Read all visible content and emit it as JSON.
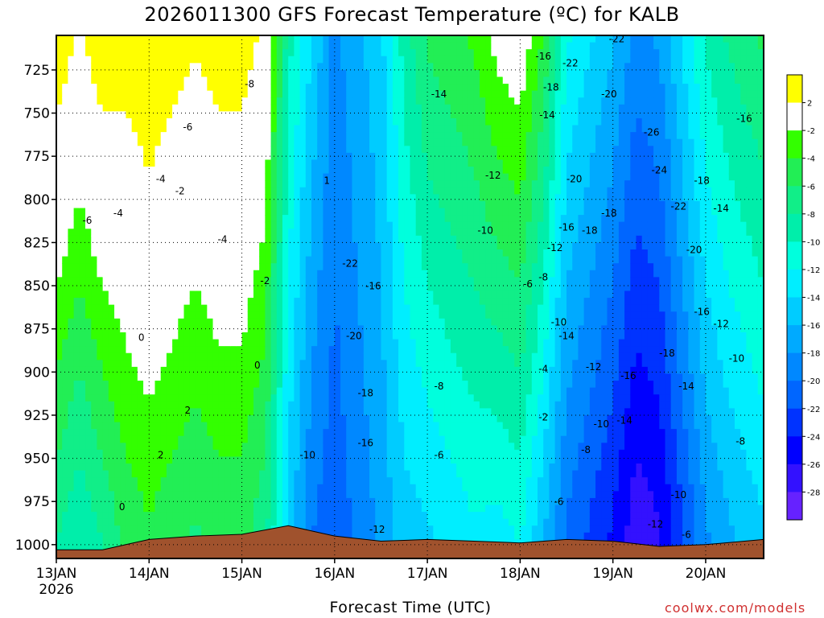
{
  "chart_data": {
    "type": "heatmap",
    "title": "2026011300 GFS Forecast Temperature (ºC) for KALB",
    "xlabel": "Forecast Time (UTC)",
    "ylabel": "",
    "credit": "coolwx.com/models",
    "x_ticks": [
      {
        "label": "13JAN",
        "sublabel": "2026",
        "hour": 0
      },
      {
        "label": "14JAN",
        "hour": 24
      },
      {
        "label": "15JAN",
        "hour": 48
      },
      {
        "label": "16JAN",
        "hour": 72
      },
      {
        "label": "17JAN",
        "hour": 96
      },
      {
        "label": "18JAN",
        "hour": 120
      },
      {
        "label": "19JAN",
        "hour": 144
      },
      {
        "label": "20JAN",
        "hour": 168
      }
    ],
    "xlim_hours": [
      0,
      183
    ],
    "y_ticks": [
      725,
      750,
      775,
      800,
      825,
      850,
      875,
      900,
      925,
      950,
      975,
      1000
    ],
    "ylim_hpa": [
      705,
      1008
    ],
    "colorbar": {
      "labels": [
        "2",
        "-2",
        "-4",
        "-6",
        "-8",
        "-10",
        "-12",
        "-14",
        "-16",
        "-18",
        "-20",
        "-22",
        "-24",
        "-26",
        "-28"
      ],
      "colors": [
        "#ffff00",
        "#ffffff",
        "#33ff00",
        "#22ee55",
        "#11ee88",
        "#00eeaa",
        "#00ffdd",
        "#00eeff",
        "#00ccff",
        "#00aaff",
        "#0088ff",
        "#0066ff",
        "#0033ff",
        "#0000ff",
        "#3311ff",
        "#6622ff"
      ]
    },
    "columns": [
      {
        "hour": 0,
        "mean": -2,
        "grad": -4
      },
      {
        "hour": 6,
        "mean": -4,
        "grad": -4
      },
      {
        "hour": 12,
        "mean": -2,
        "grad": -4
      },
      {
        "hour": 18,
        "mean": -1,
        "grad": -3
      },
      {
        "hour": 24,
        "mean": 0,
        "grad": -3
      },
      {
        "hour": 30,
        "mean": -1,
        "grad": -3
      },
      {
        "hour": 36,
        "mean": -2,
        "grad": -3
      },
      {
        "hour": 42,
        "mean": -1,
        "grad": -3
      },
      {
        "hour": 48,
        "mean": -1,
        "grad": -3
      },
      {
        "hour": 54,
        "mean": -3,
        "grad": -3
      },
      {
        "hour": 60,
        "mean": -12,
        "grad": -2
      },
      {
        "hour": 66,
        "mean": -17,
        "grad": -2
      },
      {
        "hour": 72,
        "mean": -20,
        "grad": -1
      },
      {
        "hour": 78,
        "mean": -18,
        "grad": -1
      },
      {
        "hour": 84,
        "mean": -16,
        "grad": -1
      },
      {
        "hour": 90,
        "mean": -12,
        "grad": -2
      },
      {
        "hour": 96,
        "mean": -10,
        "grad": -3
      },
      {
        "hour": 102,
        "mean": -9,
        "grad": -3
      },
      {
        "hour": 108,
        "mean": -8,
        "grad": -3
      },
      {
        "hour": 114,
        "mean": -7,
        "grad": -4
      },
      {
        "hour": 120,
        "mean": -6,
        "grad": -4
      },
      {
        "hour": 126,
        "mean": -10,
        "grad": -4
      },
      {
        "hour": 132,
        "mean": -16,
        "grad": -3
      },
      {
        "hour": 138,
        "mean": -18,
        "grad": -3
      },
      {
        "hour": 144,
        "mean": -20,
        "grad": -3
      },
      {
        "hour": 150,
        "mean": -23,
        "grad": -3
      },
      {
        "hour": 156,
        "mean": -22,
        "grad": -3
      },
      {
        "hour": 162,
        "mean": -18,
        "grad": -3
      },
      {
        "hour": 168,
        "mean": -14,
        "grad": -3
      },
      {
        "hour": 174,
        "mean": -12,
        "grad": -3
      },
      {
        "hour": 183,
        "mean": -10,
        "grad": -3
      }
    ],
    "terrain_hpa": [
      {
        "hour": 0,
        "p": 1003
      },
      {
        "hour": 12,
        "p": 1003
      },
      {
        "hour": 18,
        "p": 1000
      },
      {
        "hour": 24,
        "p": 997
      },
      {
        "hour": 36,
        "p": 995
      },
      {
        "hour": 48,
        "p": 994
      },
      {
        "hour": 60,
        "p": 989
      },
      {
        "hour": 66,
        "p": 992
      },
      {
        "hour": 72,
        "p": 995
      },
      {
        "hour": 84,
        "p": 998
      },
      {
        "hour": 96,
        "p": 997
      },
      {
        "hour": 108,
        "p": 998
      },
      {
        "hour": 120,
        "p": 999
      },
      {
        "hour": 132,
        "p": 997
      },
      {
        "hour": 144,
        "p": 998
      },
      {
        "hour": 156,
        "p": 1001
      },
      {
        "hour": 168,
        "p": 1000
      },
      {
        "hour": 183,
        "p": 997
      }
    ],
    "contour_labels": [
      {
        "text": "-8",
        "hour": 50,
        "p": 735
      },
      {
        "text": "-6",
        "hour": 34,
        "p": 760
      },
      {
        "text": "-4",
        "hour": 27,
        "p": 790
      },
      {
        "text": "-2",
        "hour": 32,
        "p": 797
      },
      {
        "text": "-4",
        "hour": 43,
        "p": 825
      },
      {
        "text": "-6",
        "hour": 8,
        "p": 814
      },
      {
        "text": "-4",
        "hour": 16,
        "p": 810
      },
      {
        "text": "-2",
        "hour": 54,
        "p": 849
      },
      {
        "text": "0",
        "hour": 22,
        "p": 882
      },
      {
        "text": "0",
        "hour": 52,
        "p": 898
      },
      {
        "text": "2",
        "hour": 34,
        "p": 924
      },
      {
        "text": "2",
        "hour": 27,
        "p": 950
      },
      {
        "text": "0",
        "hour": 17,
        "p": 980
      },
      {
        "text": "-10",
        "hour": 65,
        "p": 950
      },
      {
        "text": "-22",
        "hour": 76,
        "p": 839
      },
      {
        "text": "-20",
        "hour": 77,
        "p": 881
      },
      {
        "text": "-16",
        "hour": 82,
        "p": 852
      },
      {
        "text": "-18",
        "hour": 80,
        "p": 914
      },
      {
        "text": "-16",
        "hour": 80,
        "p": 943
      },
      {
        "text": "-14",
        "hour": 99,
        "p": 741
      },
      {
        "text": "-12",
        "hour": 113,
        "p": 788
      },
      {
        "text": "-10",
        "hour": 111,
        "p": 820
      },
      {
        "text": "-8",
        "hour": 99,
        "p": 910
      },
      {
        "text": "-6",
        "hour": 99,
        "p": 950
      },
      {
        "text": "-12",
        "hour": 83,
        "p": 993
      },
      {
        "text": "-6",
        "hour": 122,
        "p": 851
      },
      {
        "text": "-8",
        "hour": 126,
        "p": 847
      },
      {
        "text": "-4",
        "hour": 126,
        "p": 900
      },
      {
        "text": "-2",
        "hour": 126,
        "p": 928
      },
      {
        "text": "-16",
        "hour": 126,
        "p": 719
      },
      {
        "text": "-22",
        "hour": 133,
        "p": 723
      },
      {
        "text": "-18",
        "hour": 128,
        "p": 737
      },
      {
        "text": "-14",
        "hour": 127,
        "p": 753
      },
      {
        "text": "-20",
        "hour": 143,
        "p": 741
      },
      {
        "text": "-20",
        "hour": 134,
        "p": 790
      },
      {
        "text": "-16",
        "hour": 132,
        "p": 818
      },
      {
        "text": "-18",
        "hour": 138,
        "p": 820
      },
      {
        "text": "-12",
        "hour": 129,
        "p": 830
      },
      {
        "text": "-18",
        "hour": 143,
        "p": 810
      },
      {
        "text": "-10",
        "hour": 130,
        "p": 873
      },
      {
        "text": "-14",
        "hour": 132,
        "p": 881
      },
      {
        "text": "-12",
        "hour": 139,
        "p": 899
      },
      {
        "text": "-16",
        "hour": 148,
        "p": 904
      },
      {
        "text": "-10",
        "hour": 141,
        "p": 932
      },
      {
        "text": "-14",
        "hour": 147,
        "p": 930
      },
      {
        "text": "-8",
        "hour": 137,
        "p": 947
      },
      {
        "text": "-6",
        "hour": 130,
        "p": 977
      },
      {
        "text": "-22",
        "hour": 145,
        "p": 709
      },
      {
        "text": "-26",
        "hour": 154,
        "p": 763
      },
      {
        "text": "-24",
        "hour": 156,
        "p": 785
      },
      {
        "text": "-22",
        "hour": 161,
        "p": 806
      },
      {
        "text": "-18",
        "hour": 167,
        "p": 791
      },
      {
        "text": "-14",
        "hour": 172,
        "p": 807
      },
      {
        "text": "-20",
        "hour": 165,
        "p": 831
      },
      {
        "text": "-16",
        "hour": 167,
        "p": 867
      },
      {
        "text": "-12",
        "hour": 172,
        "p": 874
      },
      {
        "text": "-10",
        "hour": 176,
        "p": 894
      },
      {
        "text": "-18",
        "hour": 158,
        "p": 891
      },
      {
        "text": "-14",
        "hour": 163,
        "p": 910
      },
      {
        "text": "-8",
        "hour": 177,
        "p": 942
      },
      {
        "text": "-10",
        "hour": 161,
        "p": 973
      },
      {
        "text": "-12",
        "hour": 155,
        "p": 990
      },
      {
        "text": "-6",
        "hour": 163,
        "p": 996
      },
      {
        "text": "-16",
        "hour": 178,
        "p": 755
      },
      {
        "text": "1",
        "hour": 70,
        "p": 791
      }
    ]
  }
}
